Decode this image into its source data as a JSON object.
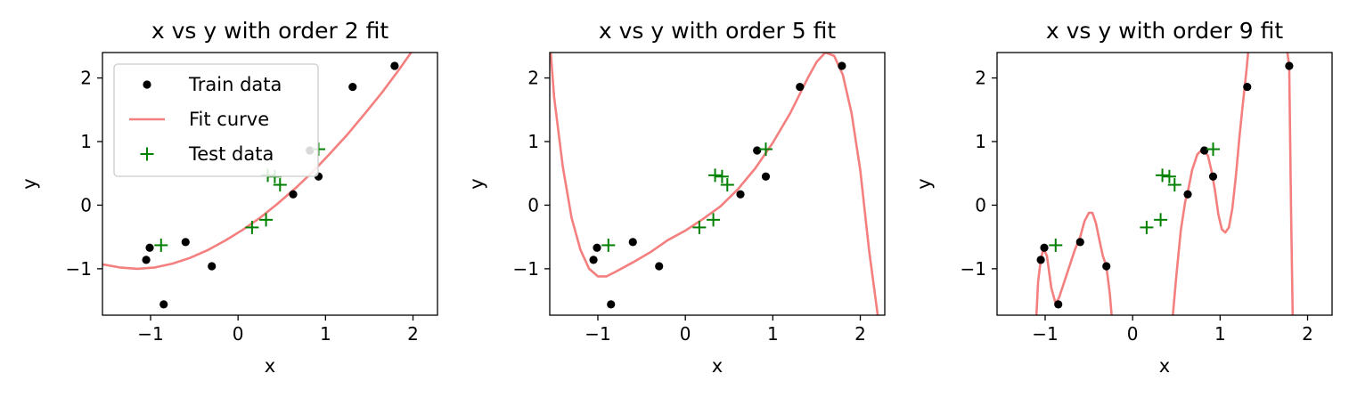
{
  "chart_data": [
    {
      "type": "scatter",
      "title": "x vs y with order 2 fit",
      "xlabel": "x",
      "ylabel": "y",
      "xlim": [
        -1.55,
        2.28
      ],
      "ylim": [
        -1.73,
        2.4
      ],
      "xticks": [
        -1,
        0,
        1,
        2
      ],
      "yticks": [
        -1,
        0,
        1,
        2
      ],
      "xtick_labels": [
        "−1",
        "0",
        "1",
        "2"
      ],
      "ytick_labels": [
        "−1",
        "0",
        "1",
        "2"
      ],
      "legend": {
        "placement": "upper-left",
        "entries": [
          {
            "label": "Train data",
            "marker": "dot",
            "color": "#000000"
          },
          {
            "label": "Fit curve",
            "marker": "line",
            "color": "#f47f7f"
          },
          {
            "label": "Test data",
            "marker": "plus",
            "color": "#008000"
          }
        ]
      },
      "series": [
        {
          "name": "Train data",
          "kind": "points",
          "x": [
            -1.05,
            -1.01,
            -0.85,
            -0.6,
            -0.3,
            0.63,
            0.82,
            0.92,
            1.31,
            1.79
          ],
          "y": [
            -0.86,
            -0.67,
            -1.56,
            -0.58,
            -0.96,
            0.17,
            0.86,
            0.45,
            1.86,
            2.19
          ]
        },
        {
          "name": "Test data",
          "kind": "points",
          "x": [
            -0.88,
            0.16,
            0.32,
            0.34,
            0.42,
            0.48,
            0.92
          ],
          "y": [
            -0.63,
            -0.35,
            -0.23,
            0.47,
            0.45,
            0.32,
            0.88
          ]
        },
        {
          "name": "Fit curve",
          "kind": "curve",
          "x": [
            -1.55,
            -1.35,
            -1.15,
            -0.95,
            -0.75,
            -0.55,
            -0.35,
            -0.15,
            0.05,
            0.25,
            0.45,
            0.65,
            0.85,
            1.05,
            1.25,
            1.45,
            1.65,
            1.85,
            2.05,
            2.28
          ],
          "y": [
            -0.93,
            -0.98,
            -1.0,
            -0.98,
            -0.92,
            -0.83,
            -0.71,
            -0.56,
            -0.39,
            -0.2,
            0.02,
            0.26,
            0.52,
            0.81,
            1.11,
            1.44,
            1.78,
            2.15,
            2.54,
            3.0
          ]
        }
      ]
    },
    {
      "type": "scatter",
      "title": "x vs y with order 5 fit",
      "xlabel": "x",
      "ylabel": "y",
      "xlim": [
        -1.55,
        2.28
      ],
      "ylim": [
        -1.73,
        2.4
      ],
      "xticks": [
        -1,
        0,
        1,
        2
      ],
      "yticks": [
        -1,
        0,
        1,
        2
      ],
      "xtick_labels": [
        "−1",
        "0",
        "1",
        "2"
      ],
      "ytick_labels": [
        "−1",
        "0",
        "1",
        "2"
      ],
      "series": [
        {
          "name": "Train data",
          "kind": "points",
          "x": [
            -1.05,
            -1.01,
            -0.85,
            -0.6,
            -0.3,
            0.63,
            0.82,
            0.92,
            1.31,
            1.79
          ],
          "y": [
            -0.86,
            -0.67,
            -1.56,
            -0.58,
            -0.96,
            0.17,
            0.86,
            0.45,
            1.86,
            2.19
          ]
        },
        {
          "name": "Test data",
          "kind": "points",
          "x": [
            -0.88,
            0.16,
            0.32,
            0.34,
            0.42,
            0.48,
            0.92
          ],
          "y": [
            -0.63,
            -0.35,
            -0.23,
            0.47,
            0.45,
            0.32,
            0.88
          ]
        },
        {
          "name": "Fit curve",
          "kind": "curve",
          "x": [
            -1.55,
            -1.5,
            -1.4,
            -1.3,
            -1.2,
            -1.1,
            -1.0,
            -0.9,
            -0.8,
            -0.6,
            -0.4,
            -0.2,
            0.0,
            0.2,
            0.4,
            0.6,
            0.8,
            1.0,
            1.2,
            1.4,
            1.5,
            1.6,
            1.7,
            1.8,
            1.9,
            2.0,
            2.1,
            2.2,
            2.25
          ],
          "y": [
            2.6,
            1.7,
            0.6,
            -0.2,
            -0.7,
            -1.0,
            -1.12,
            -1.12,
            -1.05,
            -0.9,
            -0.74,
            -0.55,
            -0.4,
            -0.22,
            -0.02,
            0.25,
            0.58,
            0.98,
            1.45,
            2.0,
            2.25,
            2.4,
            2.35,
            2.05,
            1.45,
            0.55,
            -0.7,
            -1.73,
            -2.4
          ]
        }
      ]
    },
    {
      "type": "scatter",
      "title": "x vs y with order 9 fit",
      "xlabel": "x",
      "ylabel": "y",
      "xlim": [
        -1.55,
        2.28
      ],
      "ylim": [
        -1.73,
        2.4
      ],
      "xticks": [
        -1,
        0,
        1,
        2
      ],
      "yticks": [
        -1,
        0,
        1,
        2
      ],
      "xtick_labels": [
        "−1",
        "0",
        "1",
        "2"
      ],
      "ytick_labels": [
        "−1",
        "0",
        "1",
        "2"
      ],
      "series": [
        {
          "name": "Train data",
          "kind": "points",
          "x": [
            -1.05,
            -1.01,
            -0.85,
            -0.6,
            -0.3,
            0.63,
            0.82,
            0.92,
            1.31,
            1.79
          ],
          "y": [
            -0.86,
            -0.67,
            -1.56,
            -0.58,
            -0.96,
            0.17,
            0.86,
            0.45,
            1.86,
            2.19
          ]
        },
        {
          "name": "Test data",
          "kind": "points",
          "x": [
            -0.88,
            0.16,
            0.32,
            0.34,
            0.42,
            0.48,
            0.92
          ],
          "y": [
            -0.63,
            -0.35,
            -0.23,
            0.47,
            0.45,
            0.32,
            0.88
          ]
        },
        {
          "name": "Fit curve",
          "kind": "curve",
          "segments": [
            {
              "x": [
                -1.1,
                -1.08,
                -1.05,
                -1.02,
                -0.98,
                -0.93,
                -0.88,
                -0.84,
                -0.78,
                -0.72,
                -0.66,
                -0.6,
                -0.55,
                -0.5,
                -0.46,
                -0.42,
                -0.38,
                -0.34,
                -0.3,
                -0.26,
                -0.24
              ],
              "y": [
                -1.73,
                -1.2,
                -0.86,
                -0.68,
                -0.8,
                -1.3,
                -1.55,
                -1.45,
                -1.2,
                -0.95,
                -0.7,
                -0.5,
                -0.25,
                -0.12,
                -0.12,
                -0.28,
                -0.55,
                -0.8,
                -0.96,
                -1.4,
                -1.73
              ]
            },
            {
              "x": [
                0.46,
                0.5,
                0.55,
                0.6,
                0.63,
                0.68,
                0.74,
                0.8,
                0.86,
                0.9,
                0.94,
                0.98,
                1.02,
                1.06,
                1.1,
                1.14,
                1.18,
                1.22,
                1.26,
                1.3,
                1.32
              ],
              "y": [
                -1.73,
                -1.1,
                -0.4,
                0.05,
                0.2,
                0.55,
                0.8,
                0.88,
                0.78,
                0.55,
                0.25,
                -0.15,
                -0.38,
                -0.43,
                -0.35,
                -0.05,
                0.45,
                1.05,
                1.6,
                2.1,
                2.4
              ]
            },
            {
              "x": [
                1.77,
                1.79,
                1.81,
                1.83
              ],
              "y": [
                2.4,
                2.19,
                0.0,
                -1.73
              ]
            }
          ]
        }
      ]
    }
  ],
  "colors": {
    "train": "#000000",
    "fit": "#f47f7f",
    "test": "#008000"
  }
}
